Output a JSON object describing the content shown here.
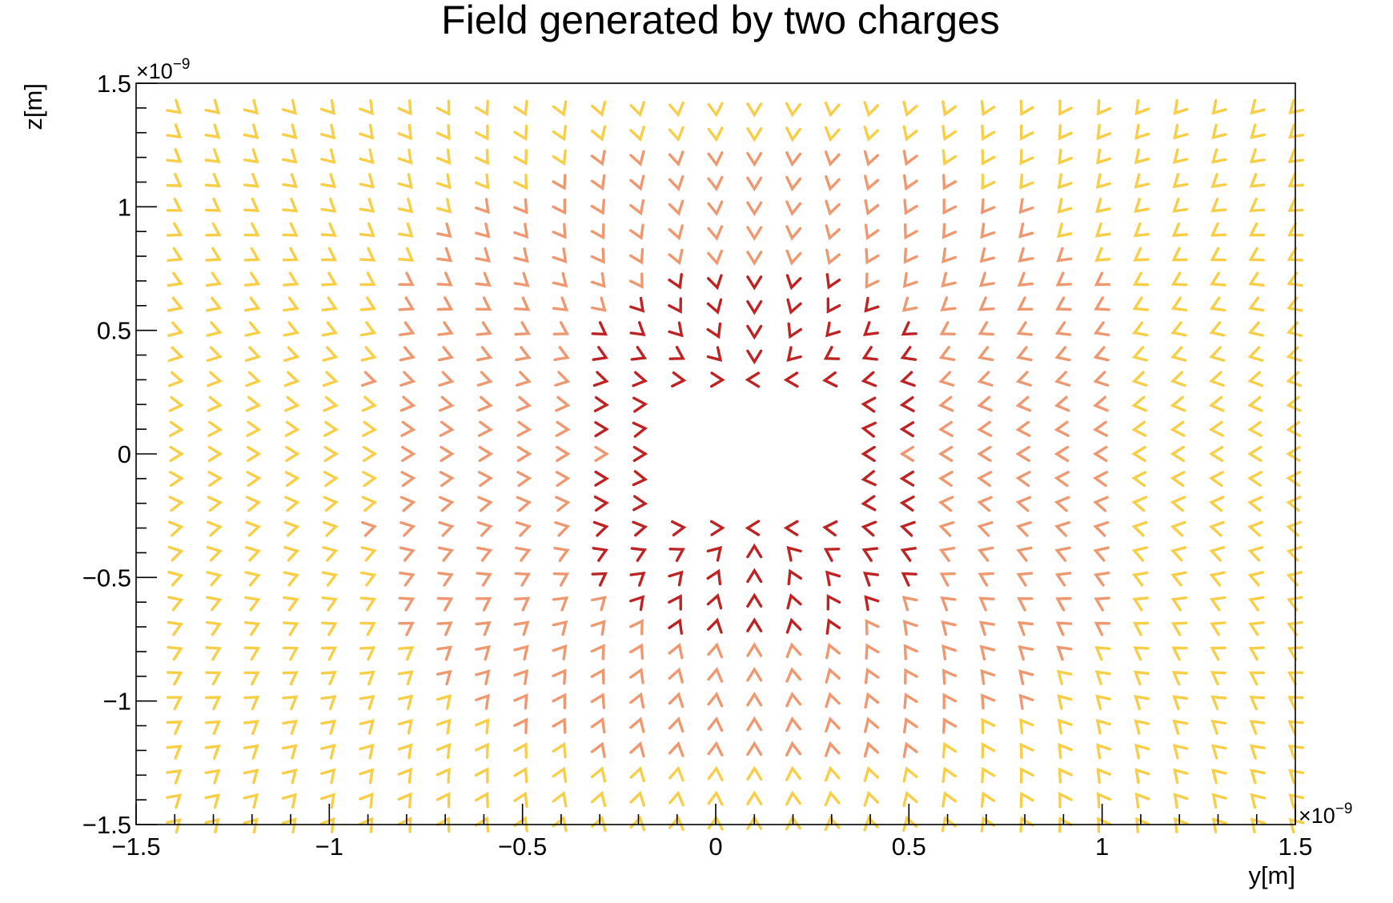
{
  "chart_data": {
    "type": "vector-field",
    "title": "Field generated by two charges",
    "xlabel": "y[m]",
    "ylabel": "z[m]",
    "xlim": [
      -1.5e-09,
      1.5e-09
    ],
    "ylim": [
      -1.5e-09,
      1.5e-09
    ],
    "x_exponent": "×10",
    "x_exponent_power": "−9",
    "y_exponent": "×10",
    "y_exponent_power": "−9",
    "x_tick_labels": [
      "−1.5",
      "−1",
      "−0.5",
      "0",
      "0.5",
      "1",
      "1.5"
    ],
    "y_tick_labels": [
      "−1.5",
      "−1",
      "−0.5",
      "0",
      "0.5",
      "1",
      "1.5"
    ],
    "x_tick_values": [
      -1.5,
      -1,
      -0.5,
      0,
      0.5,
      1,
      1.5
    ],
    "y_tick_values": [
      -1.5,
      -1,
      -0.5,
      0,
      0.5,
      1,
      1.5
    ],
    "grid": false,
    "charges": [
      {
        "y": 1e-10,
        "z": 3e-10,
        "sign": "negative"
      },
      {
        "y": 1e-10,
        "z": -3e-10,
        "sign": "negative"
      }
    ],
    "grid_y": {
      "start": -1.4e-09,
      "stop": 1.5e-09,
      "step": 1e-10
    },
    "grid_z": {
      "start": -1.5e-09,
      "stop": 1.4e-09,
      "step": 1e-10
    },
    "excluded_region": {
      "y": [
        -2e-10,
        4e-10
      ],
      "z": [
        -3e-10,
        3e-10
      ]
    },
    "color_scale": [
      "#f7ce45",
      "#ef9870",
      "#bf2222"
    ]
  }
}
